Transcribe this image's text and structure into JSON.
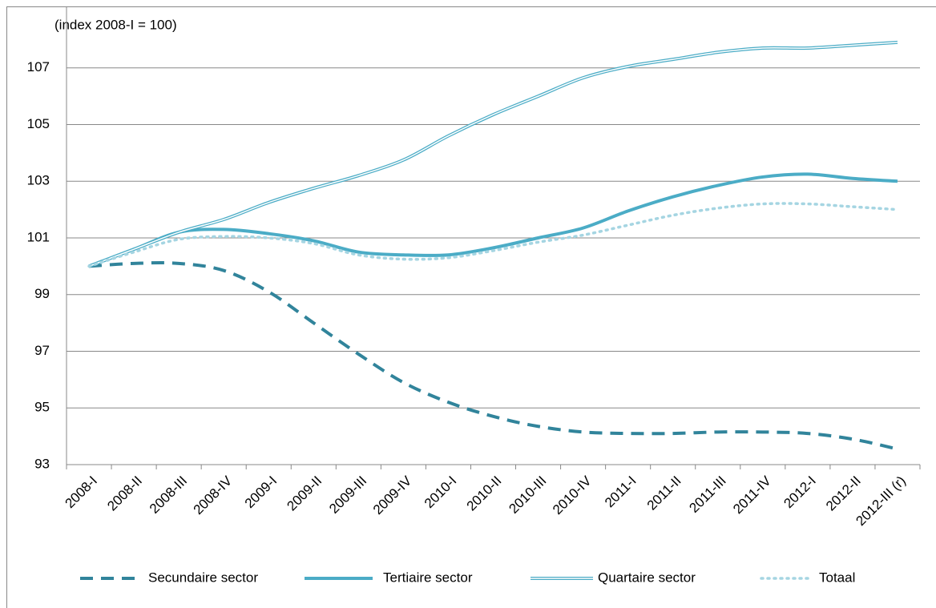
{
  "chart_data": {
    "type": "line",
    "y_label": "(index 2008-I = 100)",
    "categories": [
      "2008-I",
      "2008-II",
      "2008-III",
      "2008-IV",
      "2009-I",
      "2009-II",
      "2009-III",
      "2009-IV",
      "2010-I",
      "2010-II",
      "2010-III",
      "2010-IV",
      "2011-I",
      "2011-II",
      "2011-III",
      "2011-IV",
      "2012-I",
      "2012-II",
      "2012-III (r)"
    ],
    "series": [
      {
        "name": "Secundaire sector",
        "color": "#31849b",
        "line_style": "dashed",
        "values": [
          100,
          100.1,
          100.1,
          99.85,
          99.1,
          98.0,
          96.9,
          95.9,
          95.2,
          94.7,
          94.35,
          94.15,
          94.1,
          94.1,
          94.15,
          94.15,
          94.1,
          93.9,
          93.55
        ]
      },
      {
        "name": "Tertiaire sector",
        "color": "#4bacc6",
        "line_style": "solid",
        "values": [
          100,
          100.6,
          101.2,
          101.3,
          101.15,
          100.9,
          100.5,
          100.4,
          100.4,
          100.65,
          101.0,
          101.35,
          101.95,
          102.45,
          102.85,
          103.15,
          103.25,
          103.1,
          103.0
        ]
      },
      {
        "name": "Quartaire sector",
        "color": "#4bacc6",
        "line_style": "double",
        "values": [
          100,
          100.6,
          101.2,
          101.65,
          102.25,
          102.75,
          103.2,
          103.75,
          104.6,
          105.35,
          106.0,
          106.65,
          107.05,
          107.3,
          107.55,
          107.7,
          107.7,
          107.8,
          107.9
        ]
      },
      {
        "name": "Totaal",
        "color": "#a5d5e2",
        "line_style": "dotted",
        "values": [
          100,
          100.5,
          100.95,
          101.05,
          101.0,
          100.8,
          100.4,
          100.25,
          100.3,
          100.55,
          100.85,
          101.1,
          101.45,
          101.8,
          102.05,
          102.2,
          102.2,
          102.1,
          102.0
        ]
      }
    ],
    "ylim": [
      93,
      109
    ],
    "yticks": [
      93,
      95,
      97,
      99,
      101,
      103,
      105,
      107
    ],
    "grid": true,
    "legend": "bottom"
  }
}
